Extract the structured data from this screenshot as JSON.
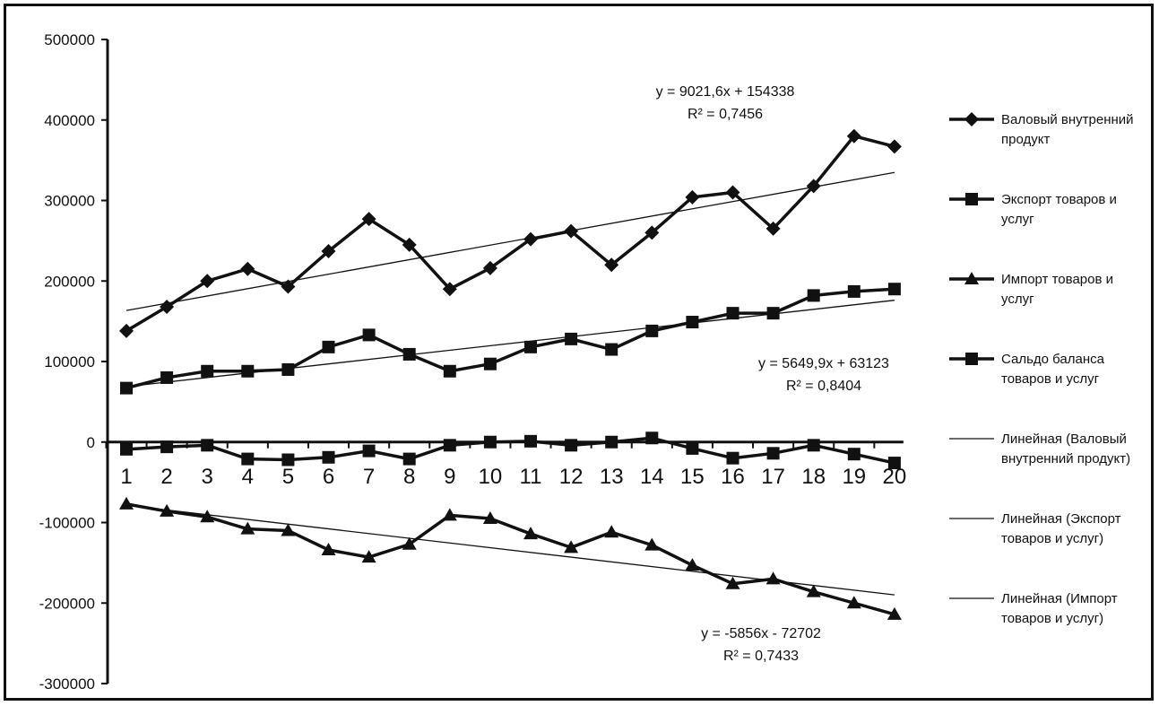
{
  "chart_data": {
    "type": "line",
    "title": "",
    "xlabel": "",
    "ylabel": "",
    "x": [
      1,
      2,
      3,
      4,
      5,
      6,
      7,
      8,
      9,
      10,
      11,
      12,
      13,
      14,
      15,
      16,
      17,
      18,
      19,
      20
    ],
    "x_tick_labels": [
      "1",
      "2",
      "3",
      "4",
      "5",
      "6",
      "7",
      "8",
      "9",
      "10",
      "11",
      "12",
      "13",
      "14",
      "15",
      "16",
      "17",
      "18",
      "19",
      "20"
    ],
    "ylim": [
      -300000,
      500000
    ],
    "y_ticks": [
      500000,
      400000,
      300000,
      200000,
      100000,
      0,
      -100000,
      -200000,
      -300000
    ],
    "y_tick_labels": [
      "500000",
      "400000",
      "300000",
      "200000",
      "100000",
      "0",
      "-100000",
      "-200000",
      "-300000"
    ],
    "grid": false,
    "legend_position": "right",
    "series": [
      {
        "name": "Валовый внутренний продукт",
        "marker": "diamond",
        "values": [
          138000,
          168000,
          200000,
          215000,
          193000,
          237000,
          277000,
          245000,
          190000,
          216000,
          252000,
          262000,
          220000,
          260000,
          304000,
          310000,
          265000,
          318000,
          380000,
          367000
        ]
      },
      {
        "name": "Экспорт товаров и услуг",
        "marker": "square",
        "values": [
          67000,
          80000,
          88000,
          88000,
          90000,
          118000,
          133000,
          109000,
          88000,
          97000,
          118000,
          128000,
          115000,
          138000,
          149000,
          160000,
          160000,
          182000,
          187000,
          190000
        ]
      },
      {
        "name": "Импорт товаров и услуг",
        "marker": "triangle",
        "values": [
          -77000,
          -86000,
          -93000,
          -108000,
          -110000,
          -134000,
          -143000,
          -127000,
          -91000,
          -95000,
          -114000,
          -131000,
          -112000,
          -128000,
          -153000,
          -176000,
          -170000,
          -186000,
          -200000,
          -214000
        ]
      },
      {
        "name": "Сальдо баланса товаров и услуг",
        "marker": "square",
        "values": [
          -9000,
          -6000,
          -4000,
          -21000,
          -22000,
          -19000,
          -11000,
          -21000,
          -4000,
          0,
          1000,
          -4000,
          0,
          5000,
          -8000,
          -20000,
          -14000,
          -4000,
          -15000,
          -26000
        ]
      }
    ],
    "trendlines": [
      {
        "name": "Линейная (Валовый внутренний продукт)",
        "slope": 9021.6,
        "intercept": 154338,
        "equation": "y = 9021,6x + 154338",
        "r2": "R² = 0,7456"
      },
      {
        "name": "Линейная (Экспорт товаров и услуг)",
        "slope": 5649.9,
        "intercept": 63123,
        "equation": "y = 5649,9x + 63123",
        "r2": "R² = 0,8404"
      },
      {
        "name": "Линейная (Импорт товаров и услуг)",
        "slope": -5856,
        "intercept": -72702,
        "equation": "y = -5856x - 72702",
        "r2": "R² = 0,7433"
      }
    ],
    "legend": [
      {
        "lines": [
          "Валовый внутренний",
          "продукт"
        ],
        "marker": "diamond",
        "thick": true
      },
      {
        "lines": [
          "Экспорт товаров и",
          "услуг"
        ],
        "marker": "square",
        "thick": true
      },
      {
        "lines": [
          "Импорт товаров и",
          "услуг"
        ],
        "marker": "triangle",
        "thick": true
      },
      {
        "lines": [
          "Сальдо баланса",
          "товаров и услуг"
        ],
        "marker": "square",
        "thick": true
      },
      {
        "lines": [
          "Линейная (Валовый",
          "внутренний продукт)"
        ],
        "marker": "none",
        "thick": false
      },
      {
        "lines": [
          "Линейная (Экспорт",
          "товаров и услуг)"
        ],
        "marker": "none",
        "thick": false
      },
      {
        "lines": [
          "Линейная (Импорт",
          "товаров и услуг)"
        ],
        "marker": "none",
        "thick": false
      }
    ],
    "colors": {
      "series": "#111111",
      "trend": "#111111",
      "axis": "#111111"
    }
  }
}
